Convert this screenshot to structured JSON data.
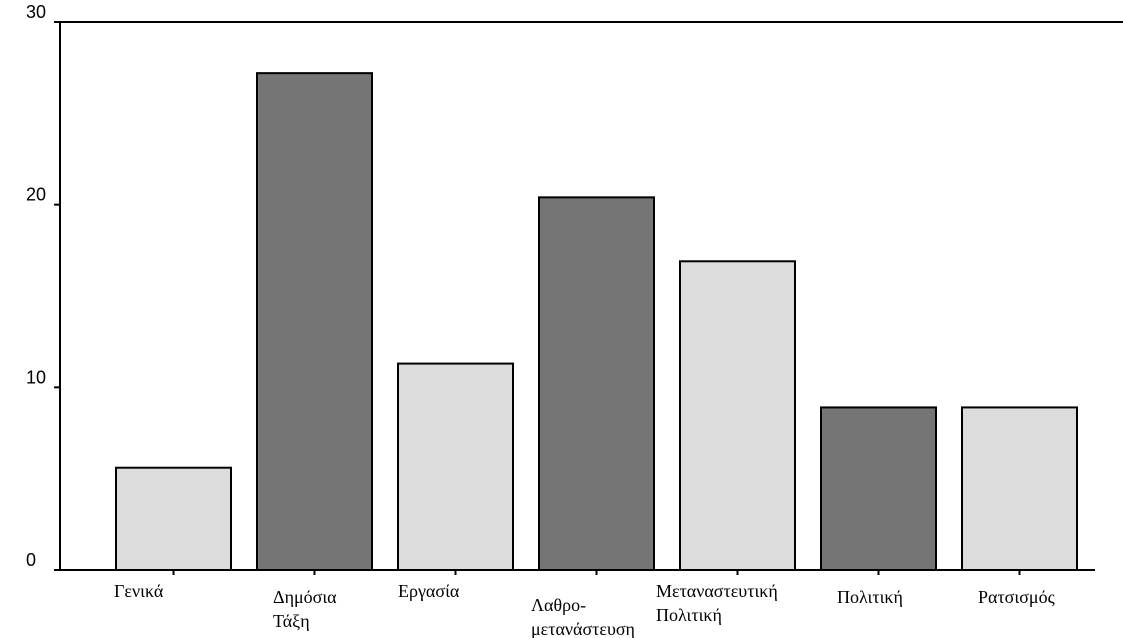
{
  "chart_data": {
    "type": "bar",
    "title": "",
    "xlabel": "",
    "ylabel": "",
    "ylim": [
      0,
      30
    ],
    "yticks": [
      0,
      10,
      20,
      30
    ],
    "grid": false,
    "legend": "none",
    "categories": [
      [
        "Γενικά"
      ],
      [
        "Δημόσια",
        "Τάξη"
      ],
      [
        "Εργασία"
      ],
      [
        "Λαθρο-",
        "μετανάστευση"
      ],
      [
        "Μεταναστευτική",
        "Πολιτική"
      ],
      [
        "Πολιτική"
      ],
      [
        "Ρατσισμός"
      ]
    ],
    "values": [
      5.6,
      27.2,
      11.3,
      20.4,
      16.9,
      8.9,
      8.9
    ],
    "bar_colors": [
      "#dcdcdc",
      "#757575",
      "#dcdcdc",
      "#757575",
      "#dcdcdc",
      "#757575",
      "#dcdcdc"
    ]
  }
}
